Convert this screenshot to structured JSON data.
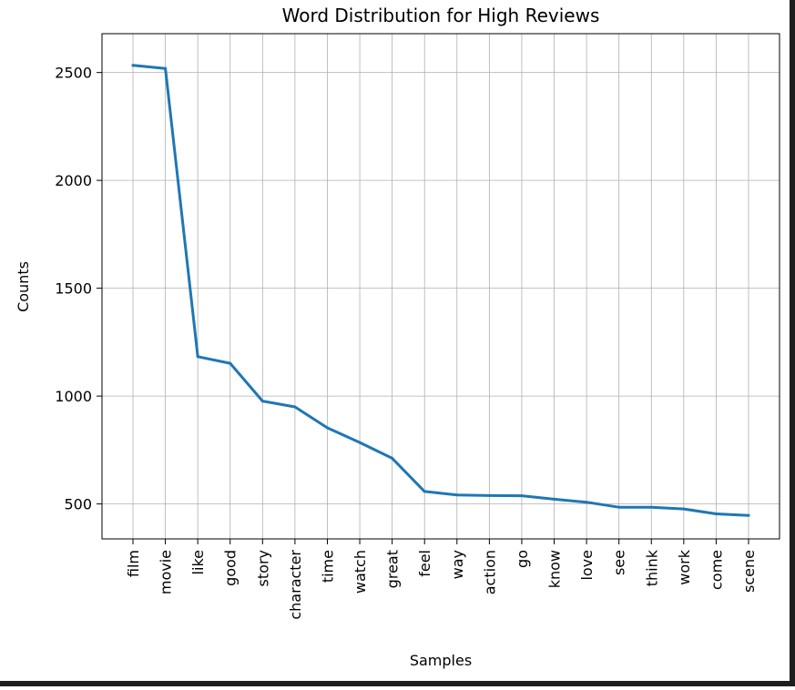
{
  "chart_data": {
    "type": "line",
    "title": "Word Distribution for High Reviews",
    "xlabel": "Samples",
    "ylabel": "Counts",
    "categories": [
      "film",
      "movie",
      "like",
      "good",
      "story",
      "character",
      "time",
      "watch",
      "great",
      "feel",
      "way",
      "action",
      "go",
      "know",
      "love",
      "see",
      "think",
      "work",
      "come",
      "scene"
    ],
    "values": [
      2533,
      2519,
      1183,
      1152,
      977,
      950,
      853,
      785,
      712,
      558,
      542,
      539,
      538,
      522,
      508,
      485,
      485,
      477,
      454,
      447
    ],
    "yticks": [
      "500",
      "1000",
      "1500",
      "2000",
      "2500"
    ],
    "ylim": [
      338,
      2680
    ],
    "grid": true,
    "line_color": "#1f77b4"
  }
}
